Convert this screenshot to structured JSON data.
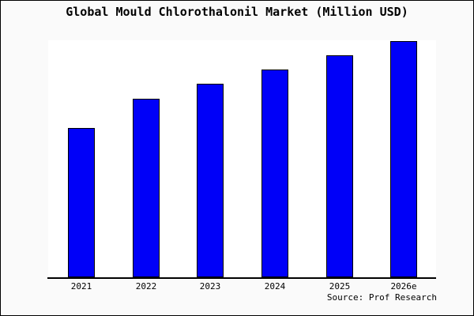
{
  "title": "Global Mould Chlorothalonil Market (Million USD)",
  "source": "Source: Prof Research",
  "colors": {
    "bar_fill": "#0000f8",
    "bar_border": "#000000",
    "plot_background": "#ffffff",
    "canvas_background": "#fafafa",
    "frame_border": "#000000",
    "text": "#000000"
  },
  "chart_data": {
    "type": "bar",
    "title": "Global Mould Chlorothalonil Market (Million USD)",
    "categories": [
      "2021",
      "2022",
      "2023",
      "2024",
      "2025",
      "2026e"
    ],
    "values": [
      189,
      226,
      245,
      263,
      281,
      299
    ],
    "value_note": "y-axis is unlabeled; values are relative bar heights (pixels) proportional to market size, max bar = 299",
    "xlabel": "",
    "ylabel": "",
    "ylim": [
      0,
      300
    ],
    "grid": false,
    "legend": false,
    "source_label": "Source: Prof Research"
  }
}
